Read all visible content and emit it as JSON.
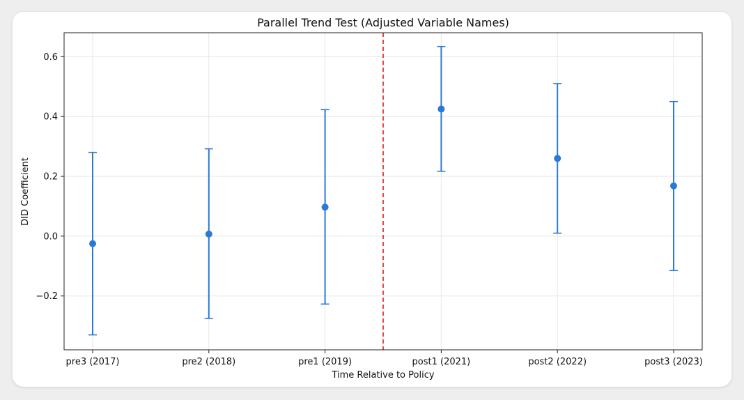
{
  "chart_data": {
    "type": "scatter",
    "title": "Parallel Trend Test (Adjusted Variable Names)",
    "xlabel": "Time Relative to Policy",
    "ylabel": "DID Coefficient",
    "categories": [
      "pre3 (2017)",
      "pre2 (2018)",
      "pre1 (2019)",
      "post1 (2021)",
      "post2 (2022)",
      "post3 (2023)"
    ],
    "values": [
      -0.025,
      0.007,
      0.097,
      0.425,
      0.26,
      0.168
    ],
    "ci_lower": [
      -0.33,
      -0.275,
      -0.227,
      0.217,
      0.01,
      -0.115
    ],
    "ci_upper": [
      0.28,
      0.292,
      0.423,
      0.634,
      0.51,
      0.45
    ],
    "ylim": [
      -0.38,
      0.68
    ],
    "yticks": [
      -0.2,
      0.0,
      0.2,
      0.4,
      0.6
    ],
    "ytick_labels": [
      "−0.2",
      "0.0",
      "0.2",
      "0.4",
      "0.6"
    ],
    "reference_line": {
      "after_category_index": 2,
      "style": "dashed",
      "color": "#e41a1c"
    },
    "grid": true,
    "colors": {
      "series": "#2a7ad5",
      "grid": "#e6e6e6",
      "axis": "#222222"
    }
  }
}
